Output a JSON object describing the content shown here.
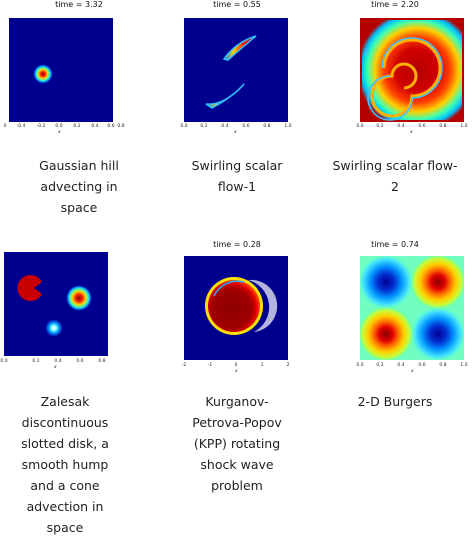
{
  "panels": [
    {
      "title": "time = 3.32",
      "xticks": [
        "0",
        "-0.4",
        "-0.2",
        "0.0",
        "0.2",
        "0.4",
        "0.6",
        "0.8"
      ],
      "xlabel": "x",
      "caption": "Gaussian hill advecting in space"
    },
    {
      "title": "time = 0.55",
      "xticks": [
        "0.0",
        "0.2",
        "0.4",
        "0.6",
        "0.8",
        "1.0"
      ],
      "xlabel": "x",
      "caption": "Swirling scalar flow-1"
    },
    {
      "title": "time = 2.20",
      "xticks": [
        "0.0",
        "0.2",
        "0.4",
        "0.6",
        "0.8",
        "1.0"
      ],
      "xlabel": "x",
      "caption": "Swirling scalar flow-2"
    },
    {
      "title": "",
      "xticks": [
        "0.0",
        "0.2",
        "0.4",
        "0.6",
        "0.8"
      ],
      "xlabel": "x",
      "caption": "Zalesak discontinuous slotted disk, a smooth hump and a cone advection in space"
    },
    {
      "title": "time = 0.28",
      "xticks": [
        "-2",
        "-1",
        "0",
        "1",
        "2"
      ],
      "xlabel": "x",
      "caption": "Kurganov-Petrova-Popov (KPP) rotating shock wave problem"
    },
    {
      "title": "time = 0.74",
      "xticks": [
        "0.0",
        "0.2",
        "0.4",
        "0.6",
        "0.8",
        "1.0"
      ],
      "xlabel": "x",
      "caption": "2-D Burgers"
    }
  ],
  "colors": {
    "background_blue": "#00008f",
    "red": "#b40000",
    "yellow": "#ffe100"
  }
}
